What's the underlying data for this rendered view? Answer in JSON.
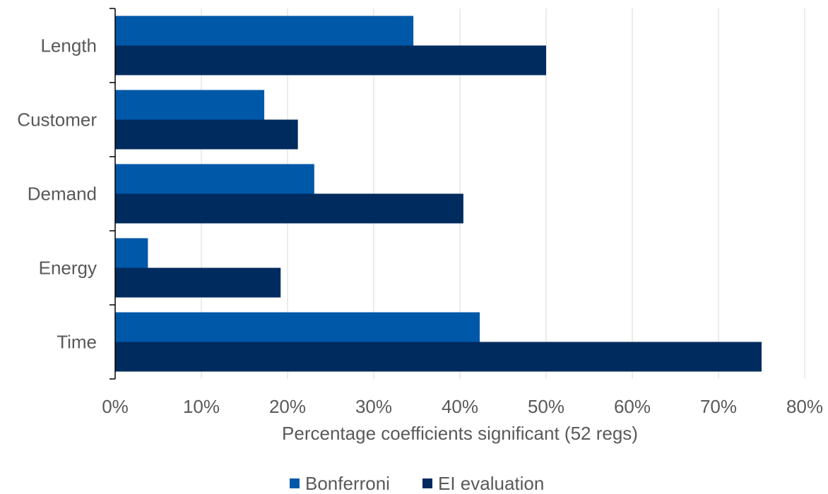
{
  "chart_data": {
    "type": "bar",
    "orientation": "horizontal",
    "categories": [
      "Length",
      "Customer",
      "Demand",
      "Energy",
      "Time"
    ],
    "series": [
      {
        "name": "Bonferroni",
        "values": [
          0.346,
          0.173,
          0.231,
          0.038,
          0.423
        ],
        "color": "#0058a8"
      },
      {
        "name": "EI evaluation",
        "values": [
          0.5,
          0.212,
          0.404,
          0.192,
          0.75
        ],
        "color": "#002b5e"
      }
    ],
    "xlabel": "Percentage coefficients significant (52 regs)",
    "ylabel": "",
    "xlim": [
      0,
      0.8
    ],
    "ticks": [
      "0%",
      "10%",
      "20%",
      "30%",
      "40%",
      "50%",
      "60%",
      "70%",
      "80%"
    ],
    "tick_values": [
      0,
      0.1,
      0.2,
      0.3,
      0.4,
      0.5,
      0.6,
      0.7,
      0.8
    ],
    "grid": true,
    "legend_position": "bottom"
  }
}
